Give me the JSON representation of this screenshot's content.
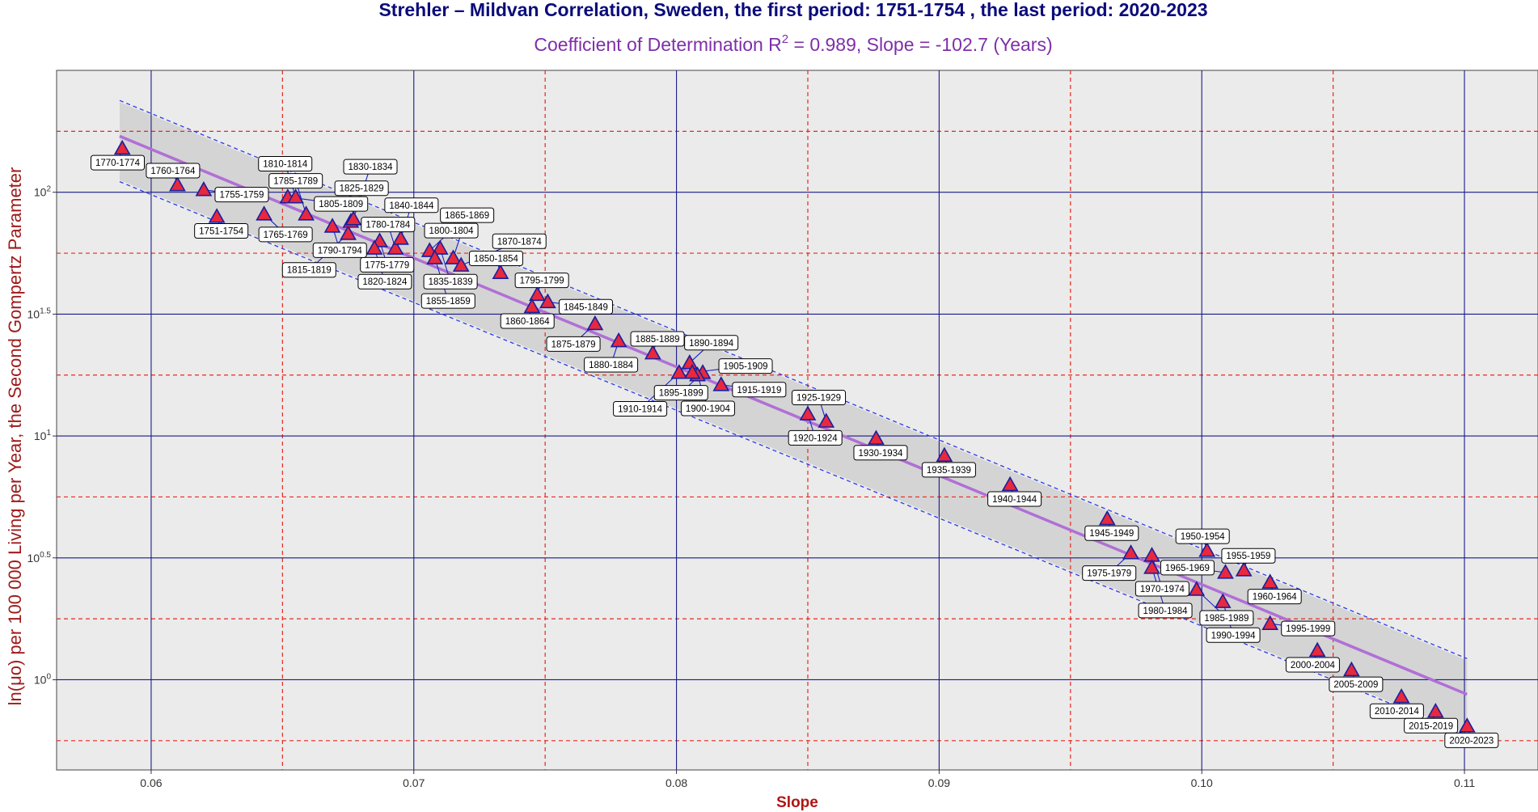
{
  "chart_data": {
    "type": "scatter",
    "title": "Strehler – Mildvan Correlation, Sweden,  the first period:  1751-1754 , the last period:  2020-2023",
    "subtitle_pre": "Coefficient of Determination R",
    "subtitle_sup": "2",
    "subtitle_post": " = 0.989, Slope = -102.7  (Years)",
    "xlabel": "Slope",
    "ylabel": "ln(μo) per 100 000 Living per Year, the Second Gompertz Parameter",
    "xlim": [
      0.0564,
      0.1128
    ],
    "ylim": [
      -0.37,
      2.5
    ],
    "xticks": [
      {
        "v": 0.06,
        "t": "0.06"
      },
      {
        "v": 0.07,
        "t": "0.07"
      },
      {
        "v": 0.08,
        "t": "0.08"
      },
      {
        "v": 0.09,
        "t": "0.09"
      },
      {
        "v": 0.1,
        "t": "0.10"
      },
      {
        "v": 0.11,
        "t": "0.11"
      }
    ],
    "yticks": [
      {
        "v": 0.0,
        "base": "10",
        "exp": "0"
      },
      {
        "v": 0.5,
        "base": "10",
        "exp": "0.5"
      },
      {
        "v": 1.0,
        "base": "10",
        "exp": "1"
      },
      {
        "v": 1.5,
        "base": "10",
        "exp": "1.5"
      },
      {
        "v": 2.0,
        "base": "10",
        "exp": "2"
      }
    ],
    "minor_x": [
      0.065,
      0.075,
      0.085,
      0.095,
      0.105
    ],
    "minor_y": [
      -0.25,
      0.25,
      0.75,
      1.25,
      1.75,
      2.25
    ],
    "grid": true,
    "fit": {
      "x0": 0.0588,
      "y0": 2.23,
      "x1": 0.1101,
      "y1": -0.06
    },
    "band": {
      "x0": 0.0588,
      "upper0": 2.37,
      "lower0": 2.05,
      "x1": 0.1101,
      "upper1": 0.08,
      "lower1": -0.22
    },
    "colors": {
      "panel": "#ebebeb",
      "band": "#d4d4d4",
      "major_grid": "#1a1a8c",
      "minor_grid": "#e8281e",
      "fit_line": "#b06fd6",
      "band_edge": "#2b3be8",
      "marker_fill": "#e8283c",
      "marker_edge": "#1a1f9e",
      "leader": "#1a23c8",
      "title": "#0b0b7a",
      "subtitle": "#7e2fa8",
      "xlabel": "#b01616",
      "ylabel": "#9e1a1a"
    },
    "points": [
      {
        "label": "1751-1754",
        "x": 0.0625,
        "y": 1.9
      },
      {
        "label": "1755-1759",
        "x": 0.062,
        "y": 2.01
      },
      {
        "label": "1760-1764",
        "x": 0.061,
        "y": 2.03
      },
      {
        "label": "1765-1769",
        "x": 0.0643,
        "y": 1.91
      },
      {
        "label": "1770-1774",
        "x": 0.0589,
        "y": 2.18
      },
      {
        "label": "1775-1779",
        "x": 0.0687,
        "y": 1.8
      },
      {
        "label": "1780-1784",
        "x": 0.0693,
        "y": 1.77
      },
      {
        "label": "1785-1789",
        "x": 0.0659,
        "y": 1.91
      },
      {
        "label": "1790-1794",
        "x": 0.0669,
        "y": 1.86
      },
      {
        "label": "1795-1799",
        "x": 0.0747,
        "y": 1.58
      },
      {
        "label": "1800-1804",
        "x": 0.0706,
        "y": 1.76
      },
      {
        "label": "1805-1809",
        "x": 0.0652,
        "y": 1.98
      },
      {
        "label": "1810-1814",
        "x": 0.0655,
        "y": 1.98
      },
      {
        "label": "1815-1819",
        "x": 0.0675,
        "y": 1.83
      },
      {
        "label": "1820-1824",
        "x": 0.0685,
        "y": 1.77
      },
      {
        "label": "1825-1829",
        "x": 0.0676,
        "y": 1.88
      },
      {
        "label": "1830-1834",
        "x": 0.0677,
        "y": 1.89
      },
      {
        "label": "1835-1839",
        "x": 0.071,
        "y": 1.77
      },
      {
        "label": "1840-1844",
        "x": 0.0695,
        "y": 1.81
      },
      {
        "label": "1845-1849",
        "x": 0.0751,
        "y": 1.55
      },
      {
        "label": "1850-1854",
        "x": 0.0733,
        "y": 1.67
      },
      {
        "label": "1855-1859",
        "x": 0.0708,
        "y": 1.73
      },
      {
        "label": "1860-1864",
        "x": 0.0745,
        "y": 1.53
      },
      {
        "label": "1865-1869",
        "x": 0.0715,
        "y": 1.73
      },
      {
        "label": "1870-1874",
        "x": 0.0718,
        "y": 1.7
      },
      {
        "label": "1875-1879",
        "x": 0.0769,
        "y": 1.46
      },
      {
        "label": "1880-1884",
        "x": 0.0778,
        "y": 1.39
      },
      {
        "label": "1885-1889",
        "x": 0.0791,
        "y": 1.34
      },
      {
        "label": "1890-1894",
        "x": 0.0805,
        "y": 1.3
      },
      {
        "label": "1895-1899",
        "x": 0.081,
        "y": 1.26
      },
      {
        "label": "1900-1904",
        "x": 0.0808,
        "y": 1.25
      },
      {
        "label": "1905-1909",
        "x": 0.0806,
        "y": 1.26
      },
      {
        "label": "1910-1914",
        "x": 0.0801,
        "y": 1.26
      },
      {
        "label": "1915-1919",
        "x": 0.0817,
        "y": 1.21
      },
      {
        "label": "1920-1924",
        "x": 0.085,
        "y": 1.09
      },
      {
        "label": "1925-1929",
        "x": 0.0857,
        "y": 1.06
      },
      {
        "label": "1930-1934",
        "x": 0.0876,
        "y": 0.99
      },
      {
        "label": "1935-1939",
        "x": 0.0902,
        "y": 0.92
      },
      {
        "label": "1940-1944",
        "x": 0.0927,
        "y": 0.8
      },
      {
        "label": "1945-1949",
        "x": 0.0964,
        "y": 0.66
      },
      {
        "label": "1950-1954",
        "x": 0.1002,
        "y": 0.53
      },
      {
        "label": "1955-1959",
        "x": 0.1016,
        "y": 0.45
      },
      {
        "label": "1960-1964",
        "x": 0.1026,
        "y": 0.4
      },
      {
        "label": "1965-1969",
        "x": 0.1009,
        "y": 0.44
      },
      {
        "label": "1970-1974",
        "x": 0.0981,
        "y": 0.51
      },
      {
        "label": "1975-1979",
        "x": 0.0973,
        "y": 0.52
      },
      {
        "label": "1980-1984",
        "x": 0.0981,
        "y": 0.46
      },
      {
        "label": "1985-1989",
        "x": 0.0998,
        "y": 0.37
      },
      {
        "label": "1990-1994",
        "x": 0.1008,
        "y": 0.32
      },
      {
        "label": "1995-1999",
        "x": 0.1026,
        "y": 0.23
      },
      {
        "label": "2000-2004",
        "x": 0.1044,
        "y": 0.12
      },
      {
        "label": "2005-2009",
        "x": 0.1057,
        "y": 0.04
      },
      {
        "label": "2010-2014",
        "x": 0.1076,
        "y": -0.07
      },
      {
        "label": "2015-2019",
        "x": 0.1089,
        "y": -0.13
      },
      {
        "label": "2020-2023",
        "x": 0.1101,
        "y": -0.19
      }
    ]
  }
}
